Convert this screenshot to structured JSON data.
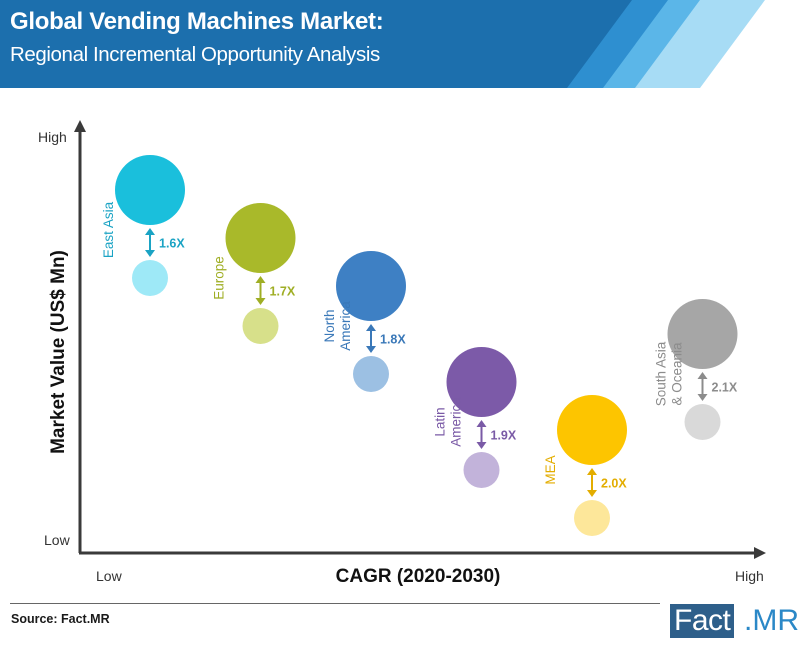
{
  "header": {
    "title": "Global Vending Machines Market:",
    "subtitle": "Regional Incremental Opportunity Analysis"
  },
  "chart_data": {
    "type": "scatter",
    "title": "",
    "xlabel": "CAGR (2020-2030)",
    "ylabel": "Market Value (US$ Mn)",
    "x_ticks": [
      "Low",
      "High"
    ],
    "y_ticks": [
      "High",
      "Low"
    ],
    "regions": [
      {
        "name": "East Asia",
        "multiplier": "1.6X",
        "color": "#1abfdc",
        "light": "#9ee9f7",
        "label_color": "#1aa3c4",
        "cagr_rank": 1,
        "value_rank": 6
      },
      {
        "name": "Europe",
        "multiplier": "1.7X",
        "color": "#a9b92a",
        "light": "#d7e08a",
        "label_color": "#9fae24",
        "cagr_rank": 2,
        "value_rank": 5
      },
      {
        "name": "North America",
        "multiplier": "1.8X",
        "color": "#3e80c4",
        "light": "#9cc0e3",
        "label_color": "#3a78b8",
        "cagr_rank": 3,
        "value_rank": 4
      },
      {
        "name": "Latin America",
        "multiplier": "1.9X",
        "color": "#7c5aa8",
        "light": "#c2b3da",
        "label_color": "#7a5aa6",
        "cagr_rank": 4,
        "value_rank": 2
      },
      {
        "name": "MEA",
        "multiplier": "2.0X",
        "color": "#fdc500",
        "light": "#fde79a",
        "label_color": "#e3ad00",
        "cagr_rank": 5,
        "value_rank": 1
      },
      {
        "name": "South Asia & Oceania",
        "multiplier": "2.1X",
        "color": "#a6a6a6",
        "light": "#d9d9d9",
        "label_color": "#8c8c8c",
        "cagr_rank": 6,
        "value_rank": 3
      }
    ]
  },
  "footer": {
    "source": "Source: Fact.MR",
    "logo_fact": "Fact",
    "logo_mr": ".MR"
  }
}
